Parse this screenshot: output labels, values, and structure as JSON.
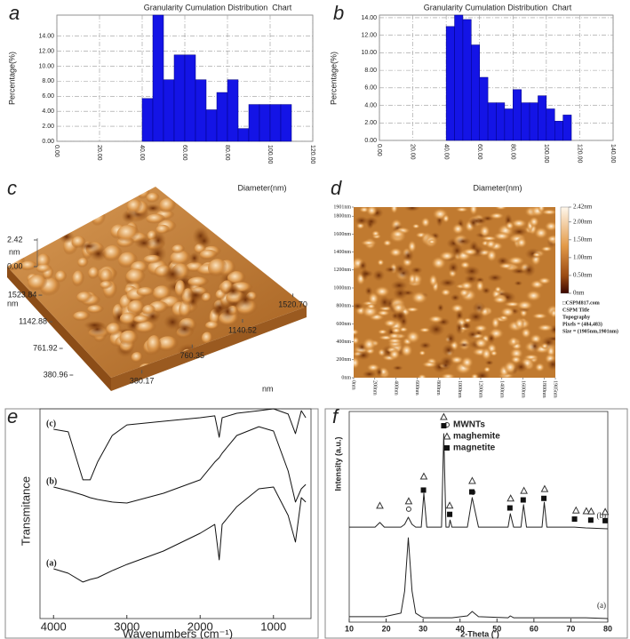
{
  "chart_data": [
    {
      "type": "histogram",
      "label": "a",
      "title": "Granularity Cumulation Distribution  Chart",
      "ylabel": "Percentage(%)",
      "xlabel": "Diameter(nm)",
      "bins": [
        40,
        45,
        50,
        55,
        60,
        65,
        70,
        75,
        80,
        85,
        90,
        95,
        100,
        105,
        110
      ],
      "values": [
        5.7,
        16.8,
        8.2,
        11.5,
        11.5,
        8.2,
        4.2,
        6.5,
        8.2,
        1.7,
        4.9,
        4.9,
        4.9,
        4.9
      ],
      "color": "#1414e6",
      "grid": true,
      "xlim": [
        0,
        120
      ],
      "ylim": [
        0,
        16.8
      ],
      "xticks": [
        {
          "value": 0,
          "label": "0.00"
        },
        {
          "value": 20,
          "label": "20.00"
        },
        {
          "value": 40,
          "label": "40.00"
        },
        {
          "value": 60,
          "label": "60.00"
        },
        {
          "value": 80,
          "label": "80.00"
        },
        {
          "value": 100,
          "label": "100.00"
        },
        {
          "value": 120,
          "label": "120.00"
        }
      ],
      "yticks": [
        {
          "value": 0,
          "label": "0.00"
        },
        {
          "value": 2,
          "label": "2.00"
        },
        {
          "value": 4,
          "label": "4.00"
        },
        {
          "value": 6,
          "label": "6.00"
        },
        {
          "value": 8,
          "label": "8.00"
        },
        {
          "value": 10,
          "label": "10.00"
        },
        {
          "value": 12,
          "label": "12.00"
        },
        {
          "value": 14,
          "label": "14.00"
        }
      ]
    },
    {
      "type": "histogram",
      "label": "b",
      "title": "Granularity Cumulation Distribution  Chart",
      "ylabel": "Percentage(%)",
      "xlabel": "Diameter(nm)",
      "bins": [
        40,
        45,
        50,
        55,
        60,
        65,
        70,
        75,
        80,
        85,
        90,
        95,
        100,
        105,
        110,
        115
      ],
      "values": [
        13.0,
        14.3,
        13.8,
        10.9,
        7.2,
        4.3,
        4.3,
        3.6,
        5.8,
        4.3,
        4.3,
        5.1,
        3.6,
        2.2,
        2.9
      ],
      "color": "#1414e6",
      "grid": true,
      "xlim": [
        0,
        140
      ],
      "ylim": [
        0,
        14.3
      ],
      "xticks": [
        {
          "value": 0,
          "label": "0.00"
        },
        {
          "value": 20,
          "label": "20.00"
        },
        {
          "value": 40,
          "label": "40.00"
        },
        {
          "value": 60,
          "label": "60.00"
        },
        {
          "value": 80,
          "label": "80.00"
        },
        {
          "value": 100,
          "label": "100.00"
        },
        {
          "value": 120,
          "label": "120.00"
        },
        {
          "value": 140,
          "label": "140.00"
        }
      ],
      "yticks": [
        {
          "value": 0,
          "label": "0.00"
        },
        {
          "value": 2,
          "label": "2.00"
        },
        {
          "value": 4,
          "label": "4.00"
        },
        {
          "value": 6,
          "label": "6.00"
        },
        {
          "value": 8,
          "label": "8.00"
        },
        {
          "value": 10,
          "label": "10.00"
        },
        {
          "value": 12,
          "label": "12.00"
        },
        {
          "value": 14,
          "label": "14.00"
        }
      ]
    },
    {
      "type": "surface",
      "label": "c",
      "zlabel": "nm",
      "ylabel": "nm",
      "xlabel": "nm",
      "zlim": [
        0,
        2.42
      ],
      "zticks": [
        {
          "value": 0,
          "label": "0.00"
        },
        2.42
      ],
      "yticks": [
        380.96,
        761.92,
        1142.88,
        1523.84
      ],
      "xticks": [
        380.17,
        760.35,
        1140.52,
        {
          "value": 1520.7,
          "label": "1520.70"
        }
      ]
    },
    {
      "type": "image",
      "label": "d",
      "yticks": [
        {
          "value": 0,
          "label": "0nm"
        },
        {
          "value": 200,
          "label": "200nm"
        },
        {
          "value": 400,
          "label": "400nm"
        },
        {
          "value": 600,
          "label": "600nm"
        },
        {
          "value": 800,
          "label": "800nm"
        },
        {
          "value": 1000,
          "label": "1000nm"
        },
        {
          "value": 1200,
          "label": "1200nm"
        },
        {
          "value": 1400,
          "label": "1400nm"
        },
        {
          "value": 1600,
          "label": "1600nm"
        },
        {
          "value": 1800,
          "label": "1800nm"
        },
        {
          "value": 1901,
          "label": "1901nm"
        }
      ],
      "xticks": [
        {
          "value": 0,
          "label": "0nm"
        },
        {
          "value": 200,
          "label": "200nm"
        },
        {
          "value": 400,
          "label": "400nm"
        },
        {
          "value": 600,
          "label": "600nm"
        },
        {
          "value": 800,
          "label": "800nm"
        },
        {
          "value": 1000,
          "label": "1000nm"
        },
        {
          "value": 1200,
          "label": "1200nm"
        },
        {
          "value": 1400,
          "label": "1400nm"
        },
        {
          "value": 1600,
          "label": "1600nm"
        },
        {
          "value": 1800,
          "label": "1800nm"
        },
        {
          "value": 1905,
          "label": "1905nm"
        }
      ],
      "ylim": [
        0,
        1901
      ],
      "xlim": [
        0,
        1905
      ],
      "clim": [
        0,
        2.42
      ],
      "cticks": [
        {
          "value": 0,
          "label": "0nm"
        },
        {
          "value": 0.5,
          "label": "0.50nm"
        },
        {
          "value": 1,
          "label": "1.00nm"
        },
        {
          "value": 1.5,
          "label": "1.50nm"
        },
        {
          "value": 2,
          "label": "2.00nm"
        },
        {
          "value": 2.42,
          "label": "2.42nm"
        }
      ],
      "info": [
        "□CSPM817.com",
        "CSPM Title",
        "Topography",
        "Pixels = (484,483)",
        "Size = (1905nm,1901nm)"
      ]
    },
    {
      "type": "line",
      "label": "e",
      "xlabel": "Wavenumbers (cm⁻¹)",
      "ylabel": "Transmitance",
      "x": [
        4000,
        3800,
        3600,
        3500,
        3400,
        3200,
        3000,
        2500,
        2000,
        1800,
        1740,
        1700,
        1500,
        1200,
        1000,
        800,
        700,
        620,
        560
      ],
      "xlim": [
        4100,
        500
      ],
      "xticks": [
        4000,
        3000,
        2000,
        1000
      ],
      "ylim": [
        0,
        105
      ],
      "series": [
        {
          "name": "(c)",
          "color": "#111",
          "values": [
            92.0,
            90.7,
            66.7,
            66.7,
            75.6,
            88.9,
            94.2,
            96.0,
            97.8,
            98.7,
            88.0,
            97.8,
            100,
            101.3,
            102.2,
            99.6,
            89.8,
            101.3,
            97.8
          ]
        },
        {
          "name": "(b)",
          "color": "#111",
          "values": [
            63.1,
            61.3,
            59.1,
            57.8,
            56.9,
            55.6,
            55.1,
            60.0,
            66.7,
            75.6,
            77.8,
            80.0,
            88.9,
            93.3,
            91.1,
            71.1,
            55.6,
            62.2,
            64.4
          ]
        },
        {
          "name": "(a)",
          "color": "#111",
          "values": [
            22.2,
            20.0,
            15.6,
            16.9,
            17.8,
            21.3,
            24.4,
            31.1,
            40.0,
            44.4,
            26.7,
            44.4,
            53.3,
            62.2,
            63.1,
            48.9,
            35.6,
            57.8,
            55.6
          ]
        }
      ]
    },
    {
      "type": "line",
      "label": "f",
      "xlabel": "2-Theta (˚)",
      "ylabel": "Intensity (a.u.)",
      "x": [
        10,
        17,
        18.3,
        19.5,
        24,
        25,
        26,
        27,
        28,
        29.5,
        30.2,
        31,
        35,
        35.6,
        36.2,
        37,
        37.3,
        37.8,
        42,
        43.3,
        45,
        53,
        53.6,
        54.5,
        56.5,
        57.2,
        58,
        62.2,
        62.8,
        63.5,
        71,
        74,
        80
      ],
      "xlim": [
        10,
        80
      ],
      "xticks": [
        10,
        20,
        30,
        40,
        50,
        60,
        70,
        80
      ],
      "ylim": [
        0,
        100
      ],
      "series": [
        {
          "name": "(b)",
          "color": "#222",
          "values": [
            45.5,
            45.5,
            47.7,
            45.5,
            45.5,
            46.8,
            50.2,
            46.8,
            45.5,
            45.5,
            61.7,
            45.5,
            45.5,
            90.2,
            45.5,
            45.5,
            48.9,
            45.5,
            45.5,
            59.6,
            45.5,
            45.5,
            51.9,
            45.5,
            45.5,
            56.2,
            45.5,
            45.5,
            57.4,
            45.5,
            45.5,
            45.1,
            44.7
          ]
        },
        {
          "name": "(a)",
          "color": "#222",
          "values": [
            2.6,
            2.6,
            2.6,
            2.6,
            4.3,
            14.9,
            40.4,
            14.9,
            4.3,
            2.6,
            2.1,
            2.1,
            2.1,
            2.1,
            2.1,
            2.1,
            2.1,
            2.1,
            3.0,
            5.1,
            2.6,
            2.1,
            3.0,
            2.1,
            2.1,
            2.1,
            2.1,
            2.1,
            2.1,
            2.1,
            2.1,
            2.1,
            1.7
          ]
        }
      ],
      "markers": [
        {
          "name": "MWNTs",
          "shape": "circle",
          "x": [
            26.1,
            43.5
          ]
        },
        {
          "name": "maghemite",
          "shape": "triangle",
          "x": [
            18.3,
            26.1,
            30.2,
            35.6,
            37.2,
            43.3,
            53.7,
            57.3,
            62.9,
            71.4,
            74.2,
            75.5,
            79.3
          ]
        },
        {
          "name": "magnetite",
          "shape": "square",
          "x": [
            30.1,
            35.6,
            37.2,
            43.2,
            53.5,
            57.1,
            62.7,
            71.0,
            75.4,
            79.3
          ]
        }
      ]
    }
  ]
}
